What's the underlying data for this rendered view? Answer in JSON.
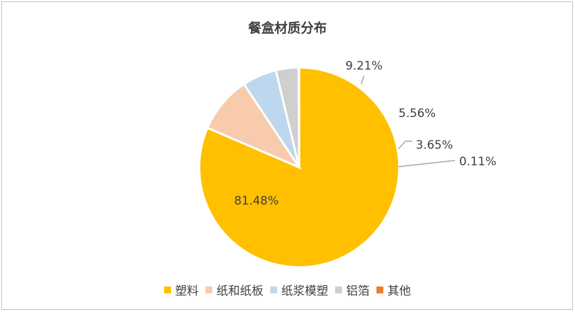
{
  "chart_data": {
    "type": "pie",
    "title": "餐盒材质分布",
    "categories": [
      "塑料",
      "纸和纸板",
      "纸浆模塑",
      "铝箔",
      "其他"
    ],
    "values": [
      81.48,
      9.21,
      5.56,
      3.65,
      0.11
    ],
    "data_labels": [
      "81.48%",
      "9.21%",
      "5.56%",
      "3.65%",
      "0.11%"
    ],
    "colors": [
      "#FFC000",
      "#F8CBAD",
      "#BDD7EE",
      "#D0CECE",
      "#ED7D31"
    ],
    "legend_position": "bottom",
    "start_angle": "90-degrees-clockwise-from-top"
  }
}
